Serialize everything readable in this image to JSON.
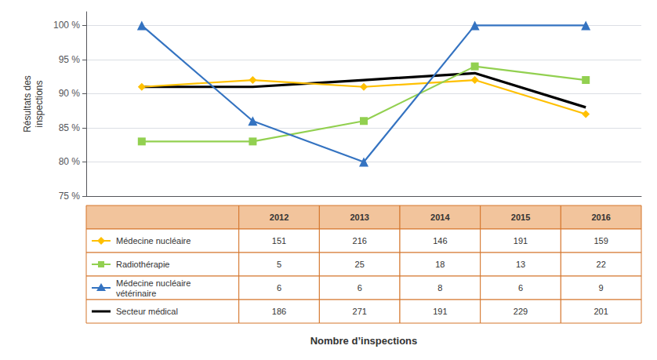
{
  "chart_data": {
    "type": "line",
    "categories": [
      "2012",
      "2013",
      "2014",
      "2015",
      "2016"
    ],
    "ylabel": "Résultats des\ninspections",
    "xlabel": "Nombre d’inspections",
    "ylim": [
      75,
      102
    ],
    "yticks": [
      {
        "value": 75,
        "label": "75 %"
      },
      {
        "value": 80,
        "label": "80 %"
      },
      {
        "value": 85,
        "label": "85 %"
      },
      {
        "value": 90,
        "label": "90 %"
      },
      {
        "value": 95,
        "label": "95 %"
      },
      {
        "value": 100,
        "label": "100 %"
      }
    ],
    "grid": true,
    "tick_labels": "y",
    "series": [
      {
        "name": "Médecine nucléaire",
        "color": "#FFC000",
        "marker": "diamond",
        "values": [
          91,
          92,
          91,
          92,
          87
        ],
        "counts": [
          151,
          216,
          146,
          191,
          159
        ]
      },
      {
        "name": "Radiothérapie",
        "color": "#92D050",
        "marker": "square",
        "values": [
          83,
          83,
          86,
          94,
          92
        ],
        "counts": [
          5,
          25,
          18,
          13,
          22
        ]
      },
      {
        "name": "Médecine nucléaire\nvétérinaire",
        "color": "#3473C1",
        "marker": "triangle",
        "values": [
          100,
          86,
          80,
          100,
          100
        ],
        "counts": [
          6,
          6,
          8,
          6,
          9
        ]
      },
      {
        "name": "Secteur médical",
        "color": "#000000",
        "marker": "none",
        "values": [
          91,
          91,
          92,
          93,
          88
        ],
        "counts": [
          186,
          271,
          191,
          229,
          201
        ]
      }
    ]
  }
}
